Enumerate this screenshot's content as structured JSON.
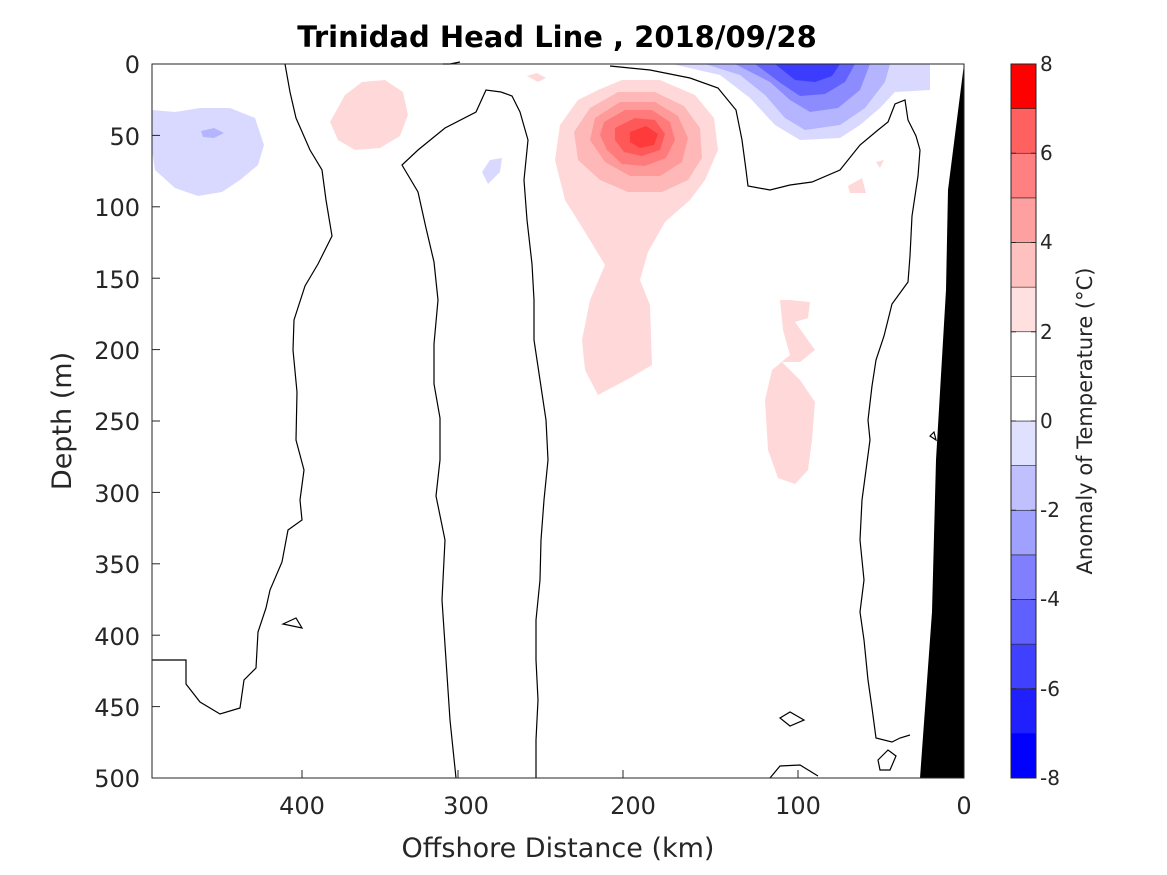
{
  "chart_data": {
    "type": "heatmap",
    "subtype": "filled-contour-section",
    "title": "Trinidad Head Line , 2018/09/28",
    "xlabel": "Offshore Distance (km)",
    "ylabel": "Depth (m)",
    "xlim": [
      489,
      0
    ],
    "x_reversed": true,
    "ylim": [
      0,
      500
    ],
    "y_reversed": true,
    "x_ticks": [
      "400",
      "300",
      "200",
      "100",
      "0"
    ],
    "y_ticks": [
      "0",
      "50",
      "100",
      "150",
      "200",
      "250",
      "300",
      "350",
      "400",
      "450",
      "500"
    ],
    "colorbar": {
      "label": "Anomaly of Temperature (°C)",
      "range": [
        -8,
        8
      ],
      "step": 1,
      "ticks": [
        "8",
        "6",
        "4",
        "2",
        "0",
        "-2",
        "-4",
        "-6",
        "-8"
      ],
      "colors": [
        "#0000ff",
        "#2020ff",
        "#4040ff",
        "#6060ff",
        "#8080ff",
        "#a0a0ff",
        "#c0c0ff",
        "#e0e0ff",
        "#ffffff",
        "#ffffff",
        "#ffe0e0",
        "#ffc0c0",
        "#ffa0a0",
        "#ff8080",
        "#ff6060",
        "#ff4040"
      ],
      "top_color": "#ff0000"
    },
    "grid": false,
    "anomalies": [
      {
        "kind": "warm",
        "x_km": 194,
        "depth_m": 50,
        "peak": 5,
        "description": "subsurface warm core"
      },
      {
        "kind": "warm",
        "x_km": 205,
        "depth_m": 200,
        "peak": 1,
        "description": "warm tongue extending down"
      },
      {
        "kind": "warm",
        "x_km": 355,
        "depth_m": 35,
        "peak": 1
      },
      {
        "kind": "warm",
        "x_km": 118,
        "depth_m": 250,
        "peak": 1
      },
      {
        "kind": "cold",
        "x_km": 90,
        "depth_m": 5,
        "peak": -4,
        "description": "surface cold anomaly"
      },
      {
        "kind": "cold",
        "x_km": 455,
        "depth_m": 55,
        "peak": -1
      },
      {
        "kind": "cold",
        "x_km": 308,
        "depth_m": 75,
        "peak": -1
      }
    ],
    "zero_contours": 7,
    "bathymetry": {
      "description": "shelf / seafloor",
      "offshore_km_at_500m": 25,
      "color": "#000000"
    }
  }
}
